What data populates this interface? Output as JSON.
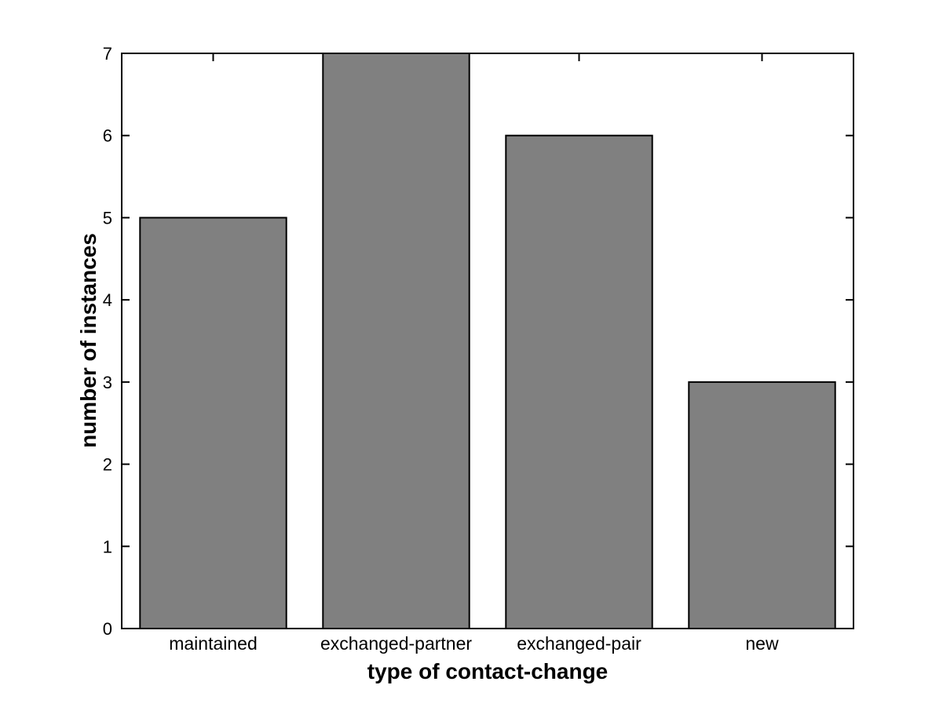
{
  "figure": {
    "background": "#ffffff",
    "axis_color": "#000000",
    "text_color": "#000000"
  },
  "chart_data": {
    "type": "bar",
    "title": "",
    "categories": [
      "maintained",
      "exchanged-partner",
      "exchanged-pair",
      "new"
    ],
    "values": [
      5,
      7,
      6,
      3
    ],
    "xlabel": "type of contact-change",
    "ylabel": "number of instances",
    "ylim": [
      0,
      7
    ],
    "yticks": [
      0,
      1,
      2,
      3,
      4,
      5,
      6,
      7
    ],
    "grid": false,
    "legend_position": "none",
    "bar_color": "#808080",
    "bar_edge_color": "#000000",
    "bar_width_fraction": 0.8
  }
}
